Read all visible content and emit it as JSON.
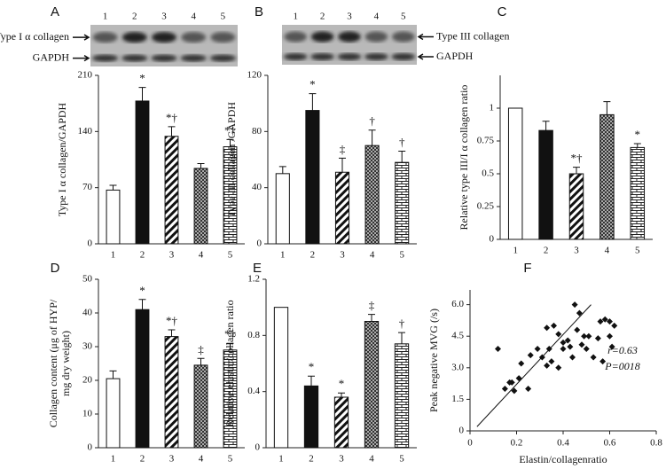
{
  "chart_data": [
    {
      "type": "bar",
      "panel": "A",
      "ylabel": "Type I α collagen/GAPDH",
      "blot": {
        "bands": [
          "Type I α collagen",
          "GAPDH"
        ]
      },
      "categories": [
        "1",
        "2",
        "3",
        "4",
        "5"
      ],
      "values": [
        67,
        178,
        134,
        94,
        121
      ],
      "errors": [
        6,
        17,
        12,
        6,
        9
      ],
      "significance": [
        null,
        "*",
        "*†",
        null,
        "*†"
      ],
      "fills": [
        "white",
        "black",
        "diagonal",
        "checker",
        "brick"
      ],
      "ylim": [
        0,
        210
      ],
      "yticks": [
        0,
        70,
        140,
        210
      ]
    },
    {
      "type": "bar",
      "panel": "B",
      "ylabel": "Type III collagen /GAPDH",
      "blot": {
        "bands": [
          "Type III collagen",
          "GAPDH"
        ]
      },
      "categories": [
        "1",
        "2",
        "3",
        "4",
        "5"
      ],
      "values": [
        50,
        95,
        51,
        70,
        58
      ],
      "errors": [
        5,
        12,
        10,
        11,
        8
      ],
      "significance": [
        null,
        "*",
        "‡",
        "†",
        "†"
      ],
      "fills": [
        "white",
        "black",
        "diagonal",
        "checker",
        "brick"
      ],
      "ylim": [
        0,
        120
      ],
      "yticks": [
        0,
        40,
        80,
        120
      ]
    },
    {
      "type": "bar",
      "panel": "C",
      "ylabel": "Relative type III/I α collagen ratio",
      "categories": [
        "1",
        "2",
        "3",
        "4",
        "5"
      ],
      "values": [
        1.0,
        0.83,
        0.5,
        0.95,
        0.7
      ],
      "errors": [
        0,
        0.07,
        0.05,
        0.1,
        0.03
      ],
      "significance": [
        null,
        null,
        "*†",
        null,
        "*"
      ],
      "fills": [
        "white",
        "black",
        "diagonal",
        "checker",
        "brick"
      ],
      "ylim": [
        0,
        1.25
      ],
      "yticks": [
        0,
        0.25,
        0.5,
        0.75,
        1
      ]
    },
    {
      "type": "bar",
      "panel": "D",
      "ylabel": [
        "Collagen content (μg of HYP/",
        "mg dry weight)"
      ],
      "categories": [
        "1",
        "2",
        "3",
        "4",
        "5"
      ],
      "values": [
        20.5,
        41,
        33,
        24.5,
        29
      ],
      "errors": [
        2.3,
        3,
        2,
        2,
        2
      ],
      "significance": [
        null,
        "*",
        "*†",
        "‡",
        "*†"
      ],
      "fills": [
        "white",
        "black",
        "diagonal",
        "checker",
        "brick"
      ],
      "ylim": [
        0,
        50
      ],
      "yticks": [
        0,
        10,
        20,
        30,
        40,
        50
      ]
    },
    {
      "type": "bar",
      "panel": "E",
      "ylabel": "Relative elastin/collagen ratio",
      "categories": [
        "1",
        "2",
        "3",
        "4",
        "5"
      ],
      "values": [
        1.0,
        0.44,
        0.36,
        0.9,
        0.74
      ],
      "errors": [
        0,
        0.07,
        0.03,
        0.05,
        0.08
      ],
      "significance": [
        null,
        "*",
        "*",
        "‡",
        "†"
      ],
      "fills": [
        "white",
        "black",
        "diagonal",
        "checker",
        "brick"
      ],
      "ylim": [
        0,
        1.2
      ],
      "yticks": [
        0,
        0.4,
        0.8,
        1.2
      ]
    },
    {
      "type": "scatter",
      "panel": "F",
      "xlabel": "Elastin/collagenratio",
      "ylabel": "Peak negative MVG (/s)",
      "annotations": [
        "r=0.63",
        "P=0018"
      ],
      "x": [
        0.12,
        0.15,
        0.17,
        0.18,
        0.19,
        0.21,
        0.22,
        0.25,
        0.26,
        0.29,
        0.31,
        0.33,
        0.33,
        0.34,
        0.35,
        0.36,
        0.38,
        0.38,
        0.4,
        0.4,
        0.42,
        0.43,
        0.44,
        0.45,
        0.46,
        0.47,
        0.48,
        0.49,
        0.5,
        0.51,
        0.53,
        0.55,
        0.56,
        0.57,
        0.58,
        0.6,
        0.6,
        0.61,
        0.62
      ],
      "y": [
        3.9,
        2.0,
        2.3,
        2.3,
        1.9,
        2.5,
        3.2,
        2.0,
        3.6,
        3.9,
        3.5,
        3.1,
        4.9,
        3.9,
        3.3,
        5.0,
        3.0,
        4.6,
        4.2,
        3.9,
        4.3,
        4.0,
        3.5,
        6.0,
        4.8,
        5.6,
        4.1,
        4.5,
        3.9,
        4.5,
        3.5,
        4.4,
        5.2,
        3.3,
        5.3,
        4.5,
        5.2,
        4.0,
        5.0
      ],
      "trend": {
        "x": [
          0.03,
          0.52
        ],
        "y": [
          0.2,
          6.0
        ]
      },
      "color": "#111111",
      "xlim": [
        0,
        0.8
      ],
      "xticks": [
        0,
        0.2,
        0.4,
        0.6,
        0.8
      ],
      "ylim": [
        0,
        6.7
      ],
      "yticks": [
        0,
        {
          "value": 1.5,
          "label": "1.5"
        },
        {
          "value": 3,
          "label": "3.0"
        },
        {
          "value": 4.5,
          "label": "4.5"
        },
        {
          "value": 6,
          "label": "6.0"
        }
      ]
    }
  ]
}
